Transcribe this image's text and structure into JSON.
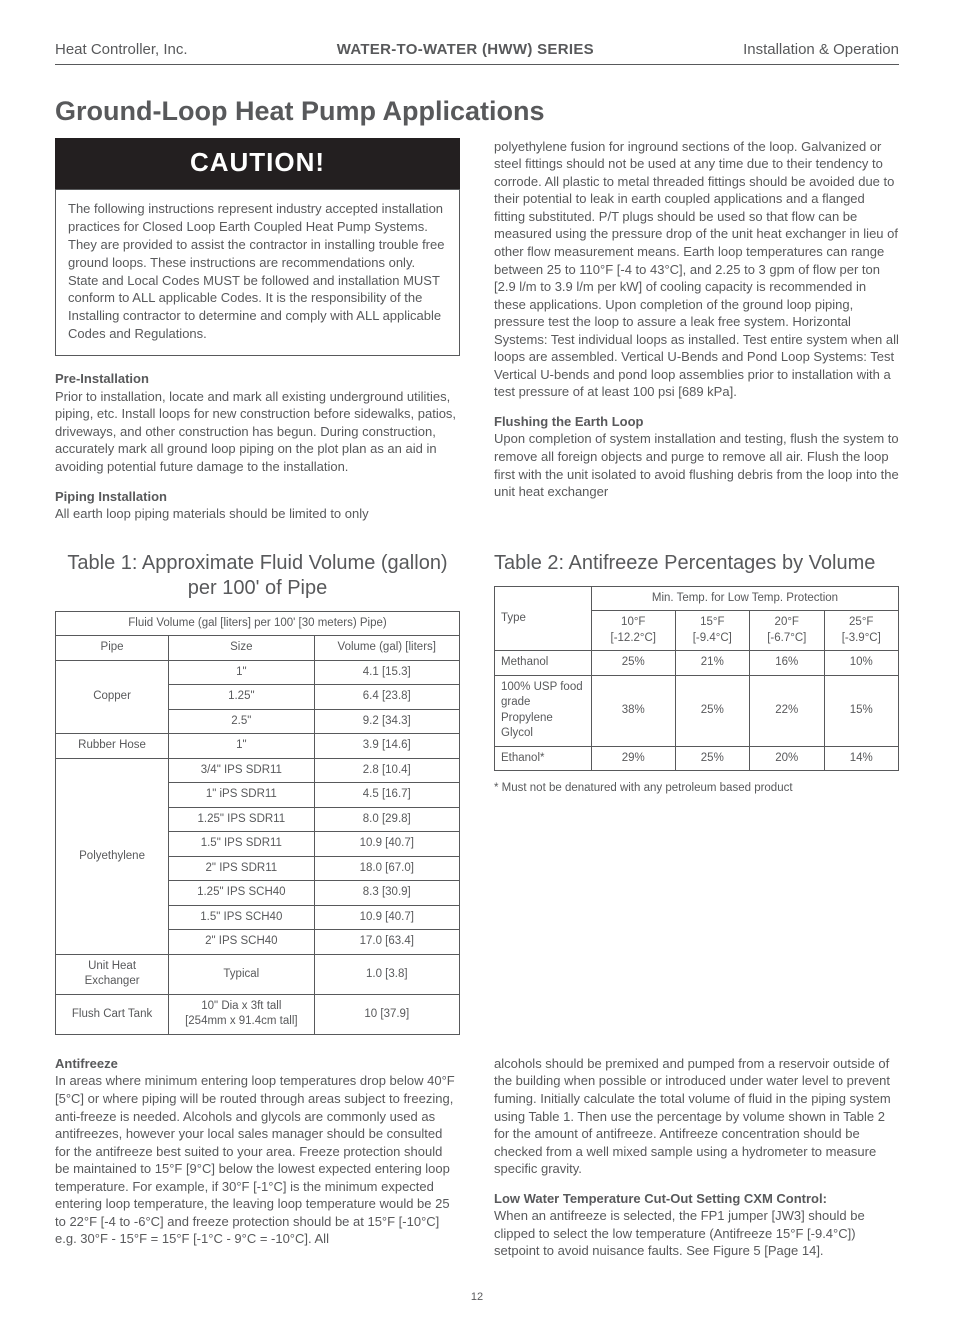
{
  "header": {
    "left": "Heat Controller, Inc.",
    "center": "WATER-TO-WATER (HWW) SERIES",
    "right": "Installation & Operation"
  },
  "title": "Ground-Loop Heat Pump Applications",
  "caution": {
    "banner": "CAUTION!",
    "body": "The following instructions represent industry accepted installation practices for Closed Loop Earth Coupled Heat Pump Systems. They are provided to assist the contractor in installing trouble free ground loops. These instructions are recommendations only. State and Local Codes MUST be followed and installation MUST conform to ALL applicable Codes. It is the responsibility of the Installing contractor to determine and comply with ALL applicable Codes and Regulations."
  },
  "preinstall": {
    "head": "Pre-Installation",
    "body": "Prior to installation, locate and mark all existing underground utilities, piping, etc. Install loops for new construction before sidewalks, patios, driveways, and other construction has begun. During construction, accurately mark all ground loop piping on the plot plan as an aid in avoiding potential future damage to the installation."
  },
  "piping": {
    "head": "Piping Installation",
    "body": "All earth loop piping materials should be limited to only"
  },
  "rightcol_top": "polyethylene fusion for inground sections of the loop. Galvanized or steel fittings should not be used at any time due to their tendency to corrode. All plastic to metal threaded fittings should be avoided due to their potential to leak in earth coupled applications and a flanged fitting substituted. P/T plugs should be used so that flow can be measured using the pressure drop of the unit heat exchanger in lieu of other flow measurement means. Earth loop temperatures can range between 25 to 110°F [-4 to 43°C], and 2.25 to 3 gpm of flow per ton [2.9 l/m to 3.9 l/m per kW] of cooling capacity is recommended in these applications. Upon completion of the ground loop piping, pressure test the loop to assure a leak free system. Horizontal Systems: Test individual loops as installed. Test entire system when all loops are assembled. Vertical U-Bends and Pond Loop Systems: Test Vertical U-bends and pond loop assemblies prior to installation with a test pressure of at least 100 psi [689 kPa].",
  "flushing": {
    "head": "Flushing the Earth Loop",
    "body": "Upon completion of system installation and testing, flush the system to remove all foreign objects and purge to remove all air. Flush the loop first with the unit isolated to avoid flushing debris from the loop into the unit heat exchanger"
  },
  "table1": {
    "title": "Table 1: Approximate Fluid Volume (gallon) per 100' of Pipe",
    "header_span": "Fluid Volume (gal [liters] per 100' [30 meters) Pipe)",
    "cols": [
      "Pipe",
      "Size",
      "Volume (gal) [liters]"
    ],
    "rows": [
      {
        "pipe": "Copper",
        "span": 3,
        "cells": [
          [
            "1\"",
            "4.1 [15.3]"
          ],
          [
            "1.25\"",
            "6.4 [23.8]"
          ],
          [
            "2.5\"",
            "9.2 [34.3]"
          ]
        ]
      },
      {
        "pipe": "Rubber Hose",
        "span": 1,
        "cells": [
          [
            "1\"",
            "3.9 [14.6]"
          ]
        ]
      },
      {
        "pipe": "Polyethylene",
        "span": 8,
        "cells": [
          [
            "3/4\" IPS SDR11",
            "2.8 [10.4]"
          ],
          [
            "1\" iPS SDR11",
            "4.5 [16.7]"
          ],
          [
            "1.25\" IPS SDR11",
            "8.0 [29.8]"
          ],
          [
            "1.5\" IPS SDR11",
            "10.9 [40.7]"
          ],
          [
            "2\" IPS SDR11",
            "18.0 [67.0]"
          ],
          [
            "1.25\" IPS SCH40",
            "8.3 [30.9]"
          ],
          [
            "1.5\" IPS SCH40",
            "10.9 [40.7]"
          ],
          [
            "2\" IPS SCH40",
            "17.0 [63.4]"
          ]
        ]
      },
      {
        "pipe": "Unit Heat Exchanger",
        "span": 1,
        "cells": [
          [
            "Typical",
            "1.0 [3.8]"
          ]
        ]
      },
      {
        "pipe": "Flush Cart Tank",
        "span": 1,
        "cells": [
          [
            "10\" Dia x 3ft tall\n[254mm x 91.4cm tall]",
            "10 [37.9]"
          ]
        ]
      }
    ]
  },
  "table2": {
    "title": "Table 2: Antifreeze Percentages by Volume",
    "header_top": "Min. Temp. for Low Temp. Protection",
    "type_label": "Type",
    "temps": [
      {
        "f": "10°F",
        "c": "[-12.2°C]"
      },
      {
        "f": "15°F",
        "c": "[-9.4°C]"
      },
      {
        "f": "20°F",
        "c": "[-6.7°C]"
      },
      {
        "f": "25°F",
        "c": "[-3.9°C]"
      }
    ],
    "rows": [
      {
        "type": "Methanol",
        "vals": [
          "25%",
          "21%",
          "16%",
          "10%"
        ]
      },
      {
        "type": "100% USP food grade Propylene Glycol",
        "vals": [
          "38%",
          "25%",
          "22%",
          "15%"
        ]
      },
      {
        "type": "Ethanol*",
        "vals": [
          "29%",
          "25%",
          "20%",
          "14%"
        ]
      }
    ],
    "footnote": "* Must not be denatured with any petroleum based product"
  },
  "antifreeze": {
    "head": "Antifreeze",
    "body": "In areas where minimum entering loop temperatures drop below 40°F [5°C] or where piping will be routed through areas subject to freezing, anti-freeze is needed. Alcohols and glycols are commonly used as antifreezes, however your local sales manager should be consulted for the antifreeze best suited to your area. Freeze protection should be maintained to 15°F [9°C] below the lowest expected entering loop temperature. For example, if 30°F [-1°C] is the minimum expected entering loop temperature, the leaving loop temperature would be 25 to 22°F [-4 to -6°C] and freeze protection should be at 15°F [-10°C] e.g. 30°F - 15°F = 15°F [-1°C - 9°C = -10°C]. All"
  },
  "antifreeze_right": "alcohols should be premixed and pumped from a reservoir outside of the building when possible or introduced under water level to prevent fuming. Initially calculate the total volume of fluid in the piping system using Table 1. Then use the percentage by volume shown in Table 2 for the amount of antifreeze. Antifreeze concentration should be checked from a well mixed sample using a hydrometer to measure specific gravity.",
  "lowwater": {
    "head": "Low Water Temperature Cut-Out Setting CXM Control:",
    "body": "When an antifreeze is selected, the FP1 jumper [JW3] should be clipped to select the low temperature (Antifreeze 15°F [-9.4°C]) setpoint to avoid nuisance faults. See Figure 5 [Page 14]."
  },
  "page_number": "12"
}
